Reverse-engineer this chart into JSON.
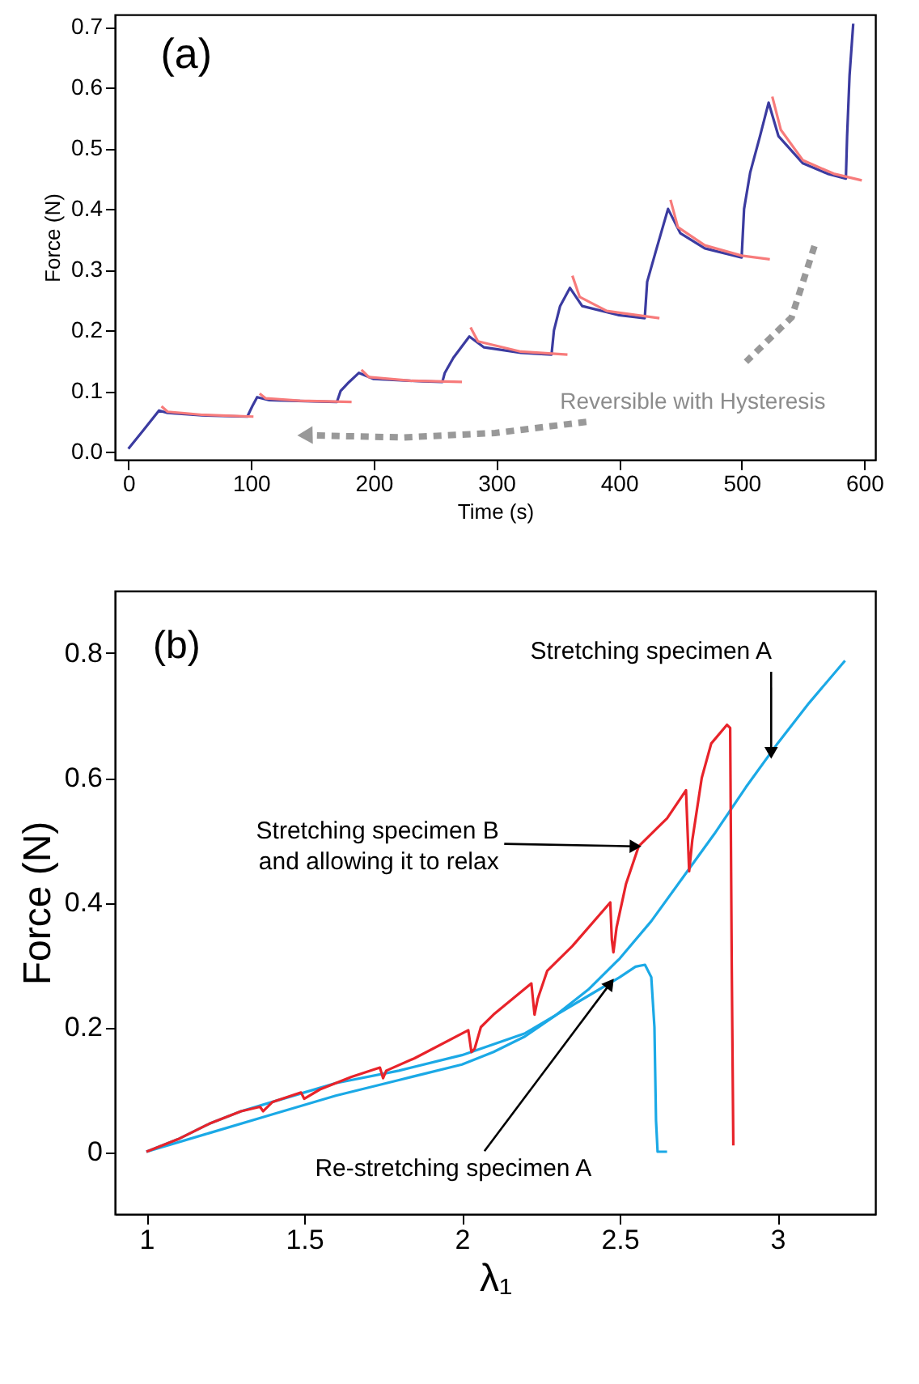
{
  "chart_data": [
    {
      "type": "line",
      "xlabel": "Time (s)",
      "ylabel": "Force (N)",
      "xlim": [
        -11,
        609
      ],
      "ylim": [
        -0.013,
        0.72
      ],
      "xticks": [
        0,
        100,
        200,
        300,
        400,
        500,
        600
      ],
      "yticks": [
        {
          "value": 0,
          "label": "0.0"
        },
        0.1,
        0.2,
        0.3,
        0.4,
        0.5,
        0.6,
        0.7
      ],
      "grid": false,
      "annotations": [
        "(a)",
        "Reversible with Hysteresis"
      ],
      "series": [
        {
          "color": "#3b3ba0",
          "x": [
            0,
            12,
            25,
            32,
            60,
            97,
            101,
            105,
            115,
            150,
            170,
            173,
            180,
            188,
            200,
            240,
            256,
            258,
            265,
            278,
            290,
            320,
            345,
            347,
            352,
            360,
            370,
            400,
            421,
            423,
            430,
            440,
            450,
            470,
            500,
            502,
            507,
            515,
            522,
            530,
            550,
            570,
            585,
            586,
            588,
            591
          ],
          "values": [
            0.005,
            0.035,
            0.068,
            0.064,
            0.06,
            0.058,
            0.075,
            0.09,
            0.085,
            0.083,
            0.082,
            0.1,
            0.115,
            0.13,
            0.12,
            0.116,
            0.115,
            0.13,
            0.155,
            0.19,
            0.172,
            0.163,
            0.16,
            0.2,
            0.24,
            0.27,
            0.24,
            0.225,
            0.22,
            0.28,
            0.33,
            0.4,
            0.36,
            0.335,
            0.32,
            0.4,
            0.46,
            0.52,
            0.575,
            0.52,
            0.475,
            0.458,
            0.45,
            0.52,
            0.62,
            0.705
          ]
        },
        {
          "color": "#f77b7b",
          "x": [
            27,
            32,
            60,
            102,
            104,
            107,
            112,
            140,
            182,
            186,
            190,
            196,
            230,
            272,
            276,
            279,
            285,
            320,
            358,
            360,
            362,
            368,
            390,
            433,
            437,
            442,
            448,
            470,
            500,
            523,
            524,
            525,
            532,
            550,
            575,
            598
          ],
          "values": [
            0.075,
            0.066,
            0.061,
            0.058,
            null,
            0.096,
            0.088,
            0.084,
            0.082,
            null,
            0.135,
            0.123,
            0.117,
            0.115,
            null,
            0.205,
            0.182,
            0.165,
            0.16,
            null,
            0.29,
            0.255,
            0.232,
            0.22,
            null,
            0.415,
            0.37,
            0.34,
            0.323,
            0.317,
            null,
            0.585,
            0.53,
            0.48,
            0.458,
            0.447
          ]
        }
      ]
    },
    {
      "type": "line",
      "xlabel": "λ₁",
      "ylabel": "Force (N)",
      "xlim": [
        0.9,
        3.31
      ],
      "ylim": [
        -0.1,
        0.9
      ],
      "xticks": [
        1,
        1.5,
        2,
        2.5,
        3
      ],
      "yticks": [
        0,
        0.2,
        0.4,
        0.6,
        0.8
      ],
      "grid": false,
      "annotations": [
        "(b)",
        {
          "text": "Stretching specimen A",
          "x": 2.98,
          "y": 0.64
        },
        {
          "text": "Stretching specimen B\nand allowing it to relax",
          "x": 2.55,
          "y": 0.49
        },
        {
          "text": "Re-stretching specimen A",
          "x": 2.47,
          "y": 0.27
        }
      ],
      "series": [
        {
          "color": "#1ba9e6",
          "x": [
            1.0,
            1.2,
            1.4,
            1.6,
            1.8,
            2.0,
            2.1,
            2.2,
            2.3,
            2.4,
            2.5,
            2.6,
            2.7,
            2.8,
            2.9,
            3.0,
            3.1,
            3.214
          ],
          "values": [
            0,
            0.03,
            0.06,
            0.09,
            0.115,
            0.14,
            0.16,
            0.185,
            0.22,
            0.26,
            0.31,
            0.37,
            0.44,
            0.51,
            0.585,
            0.655,
            0.72,
            0.788
          ]
        },
        {
          "color": "#1ba9e6",
          "x": [
            1.0,
            1.1,
            1.2,
            1.3,
            1.4,
            1.5,
            1.6,
            1.8,
            2.0,
            2.2,
            2.3,
            2.4,
            2.5,
            2.55,
            2.58,
            2.6,
            2.61,
            2.615,
            2.62,
            2.65
          ],
          "values": [
            0,
            0.02,
            0.045,
            0.065,
            0.08,
            0.095,
            0.11,
            0.13,
            0.155,
            0.19,
            0.22,
            0.25,
            0.28,
            0.297,
            0.3,
            0.28,
            0.2,
            0.05,
            0,
            0
          ]
        },
        {
          "color": "#e8232a",
          "x": [
            1.0,
            1.1,
            1.2,
            1.3,
            1.36,
            1.37,
            1.4,
            1.49,
            1.5,
            1.55,
            1.65,
            1.74,
            1.75,
            1.76,
            1.85,
            2.02,
            2.03,
            2.04,
            2.06,
            2.1,
            2.22,
            2.23,
            2.24,
            2.27,
            2.35,
            2.47,
            2.475,
            2.48,
            2.49,
            2.52,
            2.56,
            2.65,
            2.71,
            2.72,
            2.73,
            2.76,
            2.79,
            2.84,
            2.85,
            2.855,
            2.86
          ],
          "values": [
            0,
            0.02,
            0.045,
            0.065,
            0.072,
            0.065,
            0.08,
            0.095,
            0.085,
            0.1,
            0.12,
            0.135,
            0.118,
            0.13,
            0.15,
            0.195,
            0.16,
            0.165,
            0.2,
            0.22,
            0.27,
            0.22,
            0.245,
            0.29,
            0.33,
            0.4,
            0.34,
            0.32,
            0.36,
            0.43,
            0.49,
            0.535,
            0.58,
            0.45,
            0.5,
            0.6,
            0.655,
            0.685,
            0.68,
            0.3,
            0.01
          ]
        }
      ]
    }
  ]
}
